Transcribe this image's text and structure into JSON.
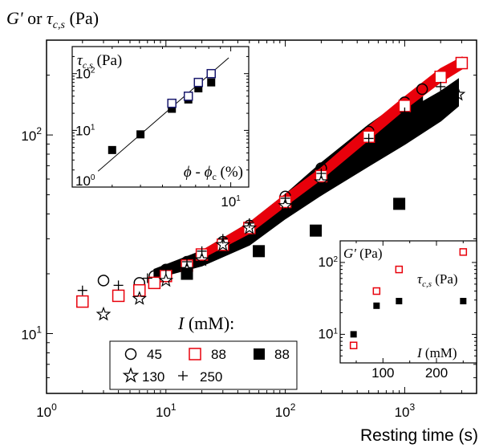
{
  "chart_data": [
    {
      "id": "main",
      "type": "scatter",
      "xlabel": "Resting time (s)",
      "ylabel_main": "G'",
      "ylabel_or": " or ",
      "ylabel_tau": "τ",
      "ylabel_sub": "c,s",
      "ylabel_unit": " (Pa)",
      "xscale": "log",
      "yscale": "log",
      "xlim": [
        1,
        4000
      ],
      "ylim": [
        5,
        300
      ],
      "x_ticks": [
        {
          "value": 1,
          "base": "10",
          "exp": "0"
        },
        {
          "value": 10,
          "base": "10",
          "exp": "1"
        },
        {
          "value": 100,
          "base": "10",
          "exp": "2"
        },
        {
          "value": 1000,
          "base": "10",
          "exp": "3"
        }
      ],
      "y_ticks": [
        {
          "value": 10,
          "base": "10",
          "exp": "1"
        },
        {
          "value": 100,
          "base": "10",
          "exp": "2"
        }
      ],
      "legend_title_italic": "I",
      "legend_title_rest": " (mM):",
      "legend_position": "bottom-center",
      "series": [
        {
          "name": "45",
          "marker": "open-circle",
          "color": "#000000",
          "x": [
            3,
            6,
            8,
            10,
            15,
            20,
            30,
            50,
            100,
            200,
            500,
            1000,
            1400
          ],
          "y": [
            18.5,
            18,
            19.5,
            21,
            23,
            25,
            29,
            35,
            49,
            68,
            104,
            146,
            170
          ]
        },
        {
          "name": "88",
          "marker": "open-square",
          "color": "#e8000b",
          "x": [
            2,
            4,
            6,
            8,
            10,
            15,
            20,
            30,
            50,
            100,
            200,
            500,
            1000,
            2000,
            3000
          ],
          "y": [
            14.5,
            15.5,
            16.5,
            18,
            19.5,
            22,
            25,
            28,
            34,
            46,
            62,
            98,
            140,
            196,
            230
          ]
        },
        {
          "name": "88",
          "marker": "filled-square",
          "color": "#000000",
          "x": [
            15,
            60,
            180,
            900
          ],
          "y": [
            20,
            26,
            33,
            45
          ]
        },
        {
          "name": "130",
          "marker": "open-star",
          "color": "#000000",
          "x": [
            3,
            6,
            10,
            15,
            20,
            30,
            50,
            100,
            200,
            500,
            1000,
            2000,
            2800
          ],
          "y": [
            12.5,
            15,
            18.5,
            21,
            23.5,
            28,
            34,
            44,
            58,
            84,
            110,
            145,
            160
          ]
        },
        {
          "name": "250",
          "marker": "plus",
          "color": "#000000",
          "x": [
            2,
            4,
            7,
            10,
            15,
            20,
            30,
            50,
            100,
            200,
            500,
            1000,
            2000
          ],
          "y": [
            16.5,
            17.5,
            19,
            21,
            23,
            26,
            30,
            36,
            48,
            64,
            96,
            130,
            175
          ]
        }
      ],
      "bands": [
        {
          "color": "#000000",
          "x": [
            8,
            20,
            50,
            100,
            200,
            500,
            1000,
            1400
          ],
          "y_low": [
            19,
            22,
            28,
            38,
            50,
            72,
            100,
            120
          ],
          "y_high": [
            21,
            26,
            36,
            50,
            72,
            112,
            150,
            175
          ]
        },
        {
          "color": "#000000",
          "x": [
            200,
            500,
            1000,
            2000,
            2800
          ],
          "y_low": [
            50,
            70,
            90,
            118,
            140
          ],
          "y_high": [
            68,
            100,
            130,
            165,
            190
          ]
        },
        {
          "color": "#e8000b",
          "x": [
            20,
            50,
            100,
            200,
            500,
            1000,
            2000,
            3000
          ],
          "y_low": [
            24,
            32,
            44,
            60,
            95,
            135,
            185,
            215
          ],
          "y_high": [
            26,
            36,
            50,
            68,
            110,
            155,
            215,
            245
          ]
        }
      ]
    },
    {
      "id": "inset-left",
      "type": "scatter",
      "label_tau": "τ",
      "label_sub": "c,s",
      "label_unit": " (Pa)",
      "label_phi": "ϕ",
      "label_minus": " - ",
      "label_phi_c": "ϕ",
      "label_phi_c_sub": "c",
      "label_unit_x": " (%)",
      "xscale": "log",
      "yscale": "log",
      "xlim": [
        2,
        12
      ],
      "ylim": [
        1,
        300
      ],
      "x_ticks": [
        {
          "value": 10,
          "base": "10",
          "exp": "1"
        }
      ],
      "y_ticks": [
        {
          "value": 1,
          "base": "10",
          "exp": "0"
        },
        {
          "value": 10,
          "base": "10",
          "exp": "1"
        },
        {
          "value": 100,
          "base": "10",
          "exp": "2"
        }
      ],
      "series": [
        {
          "name": "G'",
          "marker": "filled-square",
          "color": "#000000",
          "x": [
            3.0,
            4.0,
            5.5,
            6.5,
            7.2,
            8.2
          ],
          "y": [
            4.5,
            8.5,
            24,
            35,
            55,
            70
          ]
        },
        {
          "name": "τc,s",
          "marker": "open-square",
          "color": "#1a1a6e",
          "x": [
            5.5,
            6.5,
            7.2,
            8.2
          ],
          "y": [
            30,
            40,
            70,
            100
          ]
        }
      ],
      "fit_line": {
        "x": [
          2.6,
          9.8
        ],
        "y": [
          1.9,
          190
        ]
      }
    },
    {
      "id": "inset-right",
      "type": "scatter",
      "label_g": "G'",
      "label_g_unit": " (Pa)",
      "label_tau": "τ",
      "label_sub": "c,s",
      "label_unit": " (Pa)",
      "label_i": "I",
      "label_i_unit": " (mM)",
      "xscale": "linear",
      "yscale": "log",
      "xlim": [
        20,
        275
      ],
      "ylim": [
        4,
        200
      ],
      "x_ticks": [
        {
          "value": 100,
          "label": "100"
        },
        {
          "value": 200,
          "label": "200"
        }
      ],
      "y_ticks": [
        {
          "value": 10,
          "base": "10",
          "exp": "1"
        },
        {
          "value": 100,
          "base": "10",
          "exp": "2"
        }
      ],
      "series": [
        {
          "name": "G'",
          "marker": "filled-square",
          "color": "#000000",
          "x": [
            45,
            88,
            130,
            250
          ],
          "y": [
            10,
            25,
            29,
            29
          ]
        },
        {
          "name": "τc,s",
          "marker": "open-square",
          "color": "#e8000b",
          "x": [
            45,
            88,
            130,
            250
          ],
          "y": [
            7,
            40,
            80,
            140
          ]
        }
      ]
    }
  ]
}
